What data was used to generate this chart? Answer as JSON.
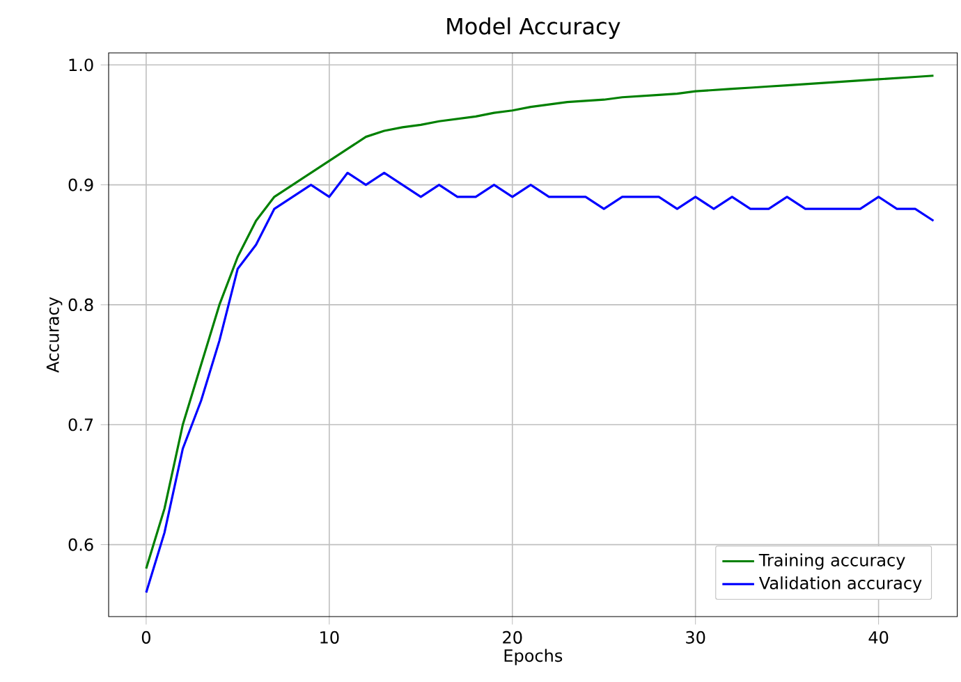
{
  "chart_data": {
    "type": "line",
    "title": "Model Accuracy",
    "xlabel": "Epochs",
    "ylabel": "Accuracy",
    "x": [
      0,
      1,
      2,
      3,
      4,
      5,
      6,
      7,
      8,
      9,
      10,
      11,
      12,
      13,
      14,
      15,
      16,
      17,
      18,
      19,
      20,
      21,
      22,
      23,
      24,
      25,
      26,
      27,
      28,
      29,
      30,
      31,
      32,
      33,
      34,
      35,
      36,
      37,
      38,
      39,
      40,
      41,
      42,
      43
    ],
    "series": [
      {
        "name": "Training accuracy",
        "color": "#008000",
        "values": [
          0.58,
          0.63,
          0.7,
          0.75,
          0.8,
          0.84,
          0.87,
          0.89,
          0.9,
          0.91,
          0.92,
          0.93,
          0.94,
          0.945,
          0.948,
          0.95,
          0.953,
          0.955,
          0.957,
          0.96,
          0.962,
          0.965,
          0.967,
          0.969,
          0.97,
          0.971,
          0.973,
          0.974,
          0.975,
          0.976,
          0.978,
          0.979,
          0.98,
          0.981,
          0.982,
          0.983,
          0.984,
          0.985,
          0.986,
          0.987,
          0.988,
          0.989,
          0.99,
          0.991
        ]
      },
      {
        "name": "Validation accuracy",
        "color": "#0000ff",
        "values": [
          0.56,
          0.61,
          0.68,
          0.72,
          0.77,
          0.83,
          0.85,
          0.88,
          0.89,
          0.9,
          0.89,
          0.91,
          0.9,
          0.91,
          0.9,
          0.89,
          0.9,
          0.89,
          0.89,
          0.9,
          0.89,
          0.9,
          0.89,
          0.89,
          0.89,
          0.88,
          0.89,
          0.89,
          0.89,
          0.88,
          0.89,
          0.88,
          0.89,
          0.88,
          0.88,
          0.89,
          0.88,
          0.88,
          0.88,
          0.88,
          0.89,
          0.88,
          0.88,
          0.87
        ]
      }
    ],
    "xlim": [
      -2.05,
      44.3
    ],
    "ylim": [
      0.54,
      1.01
    ],
    "xticks": [
      0,
      10,
      20,
      30,
      40
    ],
    "yticks": [
      0.6,
      0.7,
      0.8,
      0.9,
      {
        "value": 1,
        "label": "1.0"
      }
    ],
    "grid": true,
    "legend": "bottom right",
    "marker": "none",
    "line_style": "solid"
  }
}
